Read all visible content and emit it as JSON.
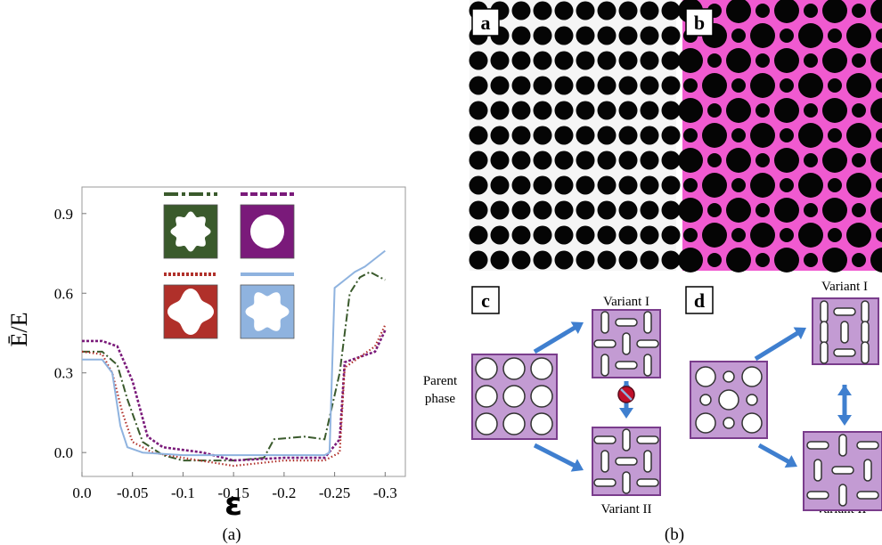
{
  "captions": {
    "a": "(a)",
    "b": "(b)"
  },
  "chart_data": {
    "type": "line",
    "title": "",
    "xlabel": "ε",
    "ylabel": "Ē/E",
    "xlim": [
      0.0,
      -0.32
    ],
    "ylim": [
      -0.09,
      1.0
    ],
    "xticks": [
      "0.0",
      "-0.05",
      "-0.1",
      "-0.15",
      "-0.2",
      "-0.25",
      "-0.3"
    ],
    "xtick_values": [
      0,
      -0.05,
      -0.1,
      -0.15,
      -0.2,
      -0.25,
      -0.3
    ],
    "yticks": [
      "0.0",
      "0.3",
      "0.6",
      "0.9"
    ],
    "ytick_values": [
      0,
      0.3,
      0.6,
      0.9
    ],
    "grid": false,
    "legend": "inset shape icons top-center",
    "series": [
      {
        "style": "dash-dot",
        "color": "#3a5a2c",
        "shape": "eight-lobed hole (green)",
        "points": [
          [
            0,
            0.38
          ],
          [
            -0.02,
            0.38
          ],
          [
            -0.035,
            0.33
          ],
          [
            -0.045,
            0.2
          ],
          [
            -0.06,
            0.04
          ],
          [
            -0.08,
            -0.01
          ],
          [
            -0.1,
            -0.03
          ],
          [
            -0.15,
            -0.03
          ],
          [
            -0.18,
            -0.02
          ],
          [
            -0.19,
            0.05
          ],
          [
            -0.22,
            0.06
          ],
          [
            -0.24,
            0.05
          ],
          [
            -0.255,
            0.3
          ],
          [
            -0.265,
            0.6
          ],
          [
            -0.275,
            0.66
          ],
          [
            -0.285,
            0.68
          ],
          [
            -0.3,
            0.65
          ]
        ]
      },
      {
        "style": "dashed",
        "color": "#7a1a7a",
        "shape": "circular hole (purple)",
        "points": [
          [
            0,
            0.42
          ],
          [
            -0.02,
            0.42
          ],
          [
            -0.035,
            0.4
          ],
          [
            -0.05,
            0.27
          ],
          [
            -0.065,
            0.06
          ],
          [
            -0.08,
            0.02
          ],
          [
            -0.1,
            0.01
          ],
          [
            -0.12,
            0.0
          ],
          [
            -0.15,
            -0.03
          ],
          [
            -0.2,
            -0.02
          ],
          [
            -0.24,
            -0.02
          ],
          [
            -0.255,
            0.05
          ],
          [
            -0.26,
            0.34
          ],
          [
            -0.275,
            0.36
          ],
          [
            -0.29,
            0.38
          ],
          [
            -0.3,
            0.46
          ]
        ]
      },
      {
        "style": "dotted",
        "color": "#b0302a",
        "shape": "rounded-square hole (red)",
        "points": [
          [
            0,
            0.38
          ],
          [
            -0.02,
            0.37
          ],
          [
            -0.03,
            0.3
          ],
          [
            -0.04,
            0.15
          ],
          [
            -0.05,
            0.04
          ],
          [
            -0.07,
            0.0
          ],
          [
            -0.1,
            -0.02
          ],
          [
            -0.15,
            -0.05
          ],
          [
            -0.2,
            -0.03
          ],
          [
            -0.24,
            -0.03
          ],
          [
            -0.255,
            0.0
          ],
          [
            -0.26,
            0.32
          ],
          [
            -0.275,
            0.36
          ],
          [
            -0.29,
            0.4
          ],
          [
            -0.3,
            0.48
          ]
        ]
      },
      {
        "style": "solid",
        "color": "#8fb3df",
        "shape": "six-lobed hole (blue)",
        "points": [
          [
            0,
            0.35
          ],
          [
            -0.02,
            0.35
          ],
          [
            -0.03,
            0.3
          ],
          [
            -0.038,
            0.1
          ],
          [
            -0.045,
            0.02
          ],
          [
            -0.06,
            0.0
          ],
          [
            -0.1,
            -0.01
          ],
          [
            -0.15,
            -0.01
          ],
          [
            -0.2,
            -0.01
          ],
          [
            -0.24,
            -0.01
          ],
          [
            -0.245,
            0.0
          ],
          [
            -0.25,
            0.62
          ],
          [
            -0.26,
            0.65
          ],
          [
            -0.27,
            0.68
          ],
          [
            -0.28,
            0.7
          ],
          [
            -0.29,
            0.73
          ],
          [
            -0.3,
            0.76
          ]
        ]
      }
    ]
  },
  "panels": {
    "a": {
      "label": "a"
    },
    "b": {
      "label": "b"
    },
    "c": {
      "label": "c",
      "parent_label": "Parent phase",
      "variant1": "Variant I",
      "variant2": "Variant II"
    },
    "d": {
      "label": "d",
      "variant1": "Variant I",
      "variant2": "Variant II"
    }
  },
  "colors": {
    "green": "#3a5a2c",
    "purple": "#7a1a7a",
    "red": "#b0302a",
    "blue": "#8fb3df",
    "box_fill": "#c39bd3",
    "box_stroke": "#7a3d8c",
    "arrow": "#3f7fcf",
    "pink": "#f05ad0",
    "block_icon": "#c0102a"
  }
}
